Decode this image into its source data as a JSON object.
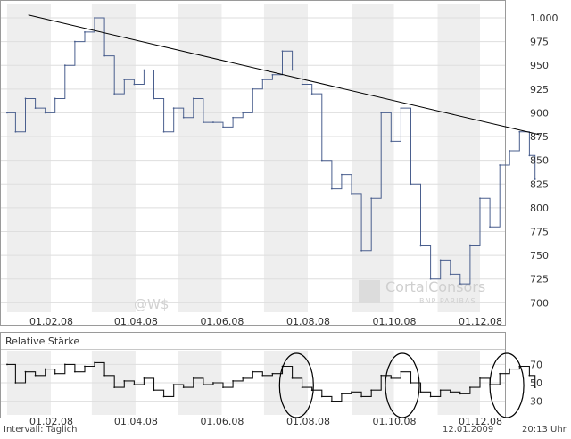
{
  "chart_data": [
    {
      "type": "line",
      "name": "price-chart",
      "ylim": [
        690,
        1015
      ],
      "y_ticks": [
        "1.000",
        "975",
        "950",
        "925",
        "900",
        "875",
        "850",
        "825",
        "800",
        "775",
        "750",
        "725",
        "700"
      ],
      "y_tick_values": [
        1000,
        975,
        950,
        925,
        900,
        875,
        850,
        825,
        800,
        775,
        750,
        725,
        700
      ],
      "x_ticks": [
        "01.02.08",
        "01.04.08",
        "01.06.08",
        "01.08.08",
        "01.10.08",
        "01.12.08"
      ],
      "grid": true,
      "watermark": "@W$",
      "trendline": {
        "x": [
          "2008-01-16",
          "2009-01-12"
        ],
        "y": [
          1003,
          877
        ]
      },
      "series": [
        {
          "color": "#4a5f8e",
          "x": [
            "2008-01-01",
            "2008-01-07",
            "2008-01-14",
            "2008-01-21",
            "2008-01-28",
            "2008-02-04",
            "2008-02-11",
            "2008-02-18",
            "2008-02-25",
            "2008-03-03",
            "2008-03-10",
            "2008-03-17",
            "2008-03-24",
            "2008-03-31",
            "2008-04-07",
            "2008-04-14",
            "2008-04-21",
            "2008-04-28",
            "2008-05-05",
            "2008-05-12",
            "2008-05-19",
            "2008-05-26",
            "2008-06-02",
            "2008-06-09",
            "2008-06-16",
            "2008-06-23",
            "2008-06-30",
            "2008-07-07",
            "2008-07-14",
            "2008-07-21",
            "2008-07-28",
            "2008-08-04",
            "2008-08-11",
            "2008-08-18",
            "2008-08-25",
            "2008-09-01",
            "2008-09-08",
            "2008-09-15",
            "2008-09-22",
            "2008-09-29",
            "2008-10-06",
            "2008-10-13",
            "2008-10-20",
            "2008-10-27",
            "2008-11-03",
            "2008-11-10",
            "2008-11-17",
            "2008-11-24",
            "2008-12-01",
            "2008-12-08",
            "2008-12-15",
            "2008-12-22",
            "2008-12-29",
            "2009-01-05",
            "2009-01-09"
          ],
          "y": [
            900,
            880,
            915,
            905,
            900,
            915,
            950,
            975,
            985,
            1000,
            960,
            920,
            935,
            930,
            945,
            915,
            880,
            905,
            895,
            915,
            890,
            890,
            885,
            895,
            900,
            925,
            935,
            940,
            965,
            945,
            930,
            920,
            850,
            820,
            835,
            815,
            755,
            810,
            900,
            870,
            905,
            825,
            760,
            725,
            745,
            730,
            720,
            760,
            810,
            780,
            845,
            860,
            880,
            855,
            830
          ]
        }
      ]
    },
    {
      "type": "line",
      "name": "relative-strength",
      "title": "Relative Stärke",
      "ylim": [
        15,
        85
      ],
      "y_ticks": [
        "70",
        "50",
        "30"
      ],
      "y_tick_values": [
        70,
        50,
        30
      ],
      "x_ticks": [
        "01.02.08",
        "01.04.08",
        "01.06.08",
        "01.08.08",
        "01.10.08",
        "01.12.08"
      ],
      "grid": true,
      "circled_regions": [
        "2008-07-24",
        "2008-10-07",
        "2008-12-20"
      ],
      "series": [
        {
          "color": "#111111",
          "x": [
            "2008-01-01",
            "2008-01-07",
            "2008-01-14",
            "2008-01-21",
            "2008-01-28",
            "2008-02-04",
            "2008-02-11",
            "2008-02-18",
            "2008-02-25",
            "2008-03-03",
            "2008-03-10",
            "2008-03-17",
            "2008-03-24",
            "2008-03-31",
            "2008-04-07",
            "2008-04-14",
            "2008-04-21",
            "2008-04-28",
            "2008-05-05",
            "2008-05-12",
            "2008-05-19",
            "2008-05-26",
            "2008-06-02",
            "2008-06-09",
            "2008-06-16",
            "2008-06-23",
            "2008-06-30",
            "2008-07-07",
            "2008-07-14",
            "2008-07-21",
            "2008-07-28",
            "2008-08-04",
            "2008-08-11",
            "2008-08-18",
            "2008-08-25",
            "2008-09-01",
            "2008-09-08",
            "2008-09-15",
            "2008-09-22",
            "2008-09-29",
            "2008-10-06",
            "2008-10-13",
            "2008-10-20",
            "2008-10-27",
            "2008-11-03",
            "2008-11-10",
            "2008-11-17",
            "2008-11-24",
            "2008-12-01",
            "2008-12-08",
            "2008-12-15",
            "2008-12-22",
            "2008-12-29",
            "2009-01-05",
            "2009-01-09"
          ],
          "y": [
            70,
            50,
            62,
            58,
            65,
            60,
            70,
            62,
            68,
            72,
            58,
            45,
            52,
            48,
            55,
            42,
            35,
            48,
            45,
            55,
            48,
            50,
            45,
            52,
            55,
            62,
            58,
            60,
            68,
            55,
            45,
            42,
            35,
            30,
            38,
            40,
            35,
            42,
            58,
            55,
            62,
            50,
            40,
            35,
            42,
            40,
            38,
            45,
            55,
            48,
            60,
            65,
            68,
            58,
            45
          ]
        }
      ]
    }
  ],
  "footer": {
    "interval_label": "Intervall: Täglich",
    "date": "12.01.2009",
    "time": "20:13 Uhr"
  },
  "branding": {
    "name": "CortalConsors",
    "sub": "BNP PARIBAS"
  },
  "colors": {
    "price_line": "#4a5f8e",
    "rs_line": "#111111",
    "trendline": "#000000",
    "band": "#eeeeee",
    "frame": "#999999"
  }
}
